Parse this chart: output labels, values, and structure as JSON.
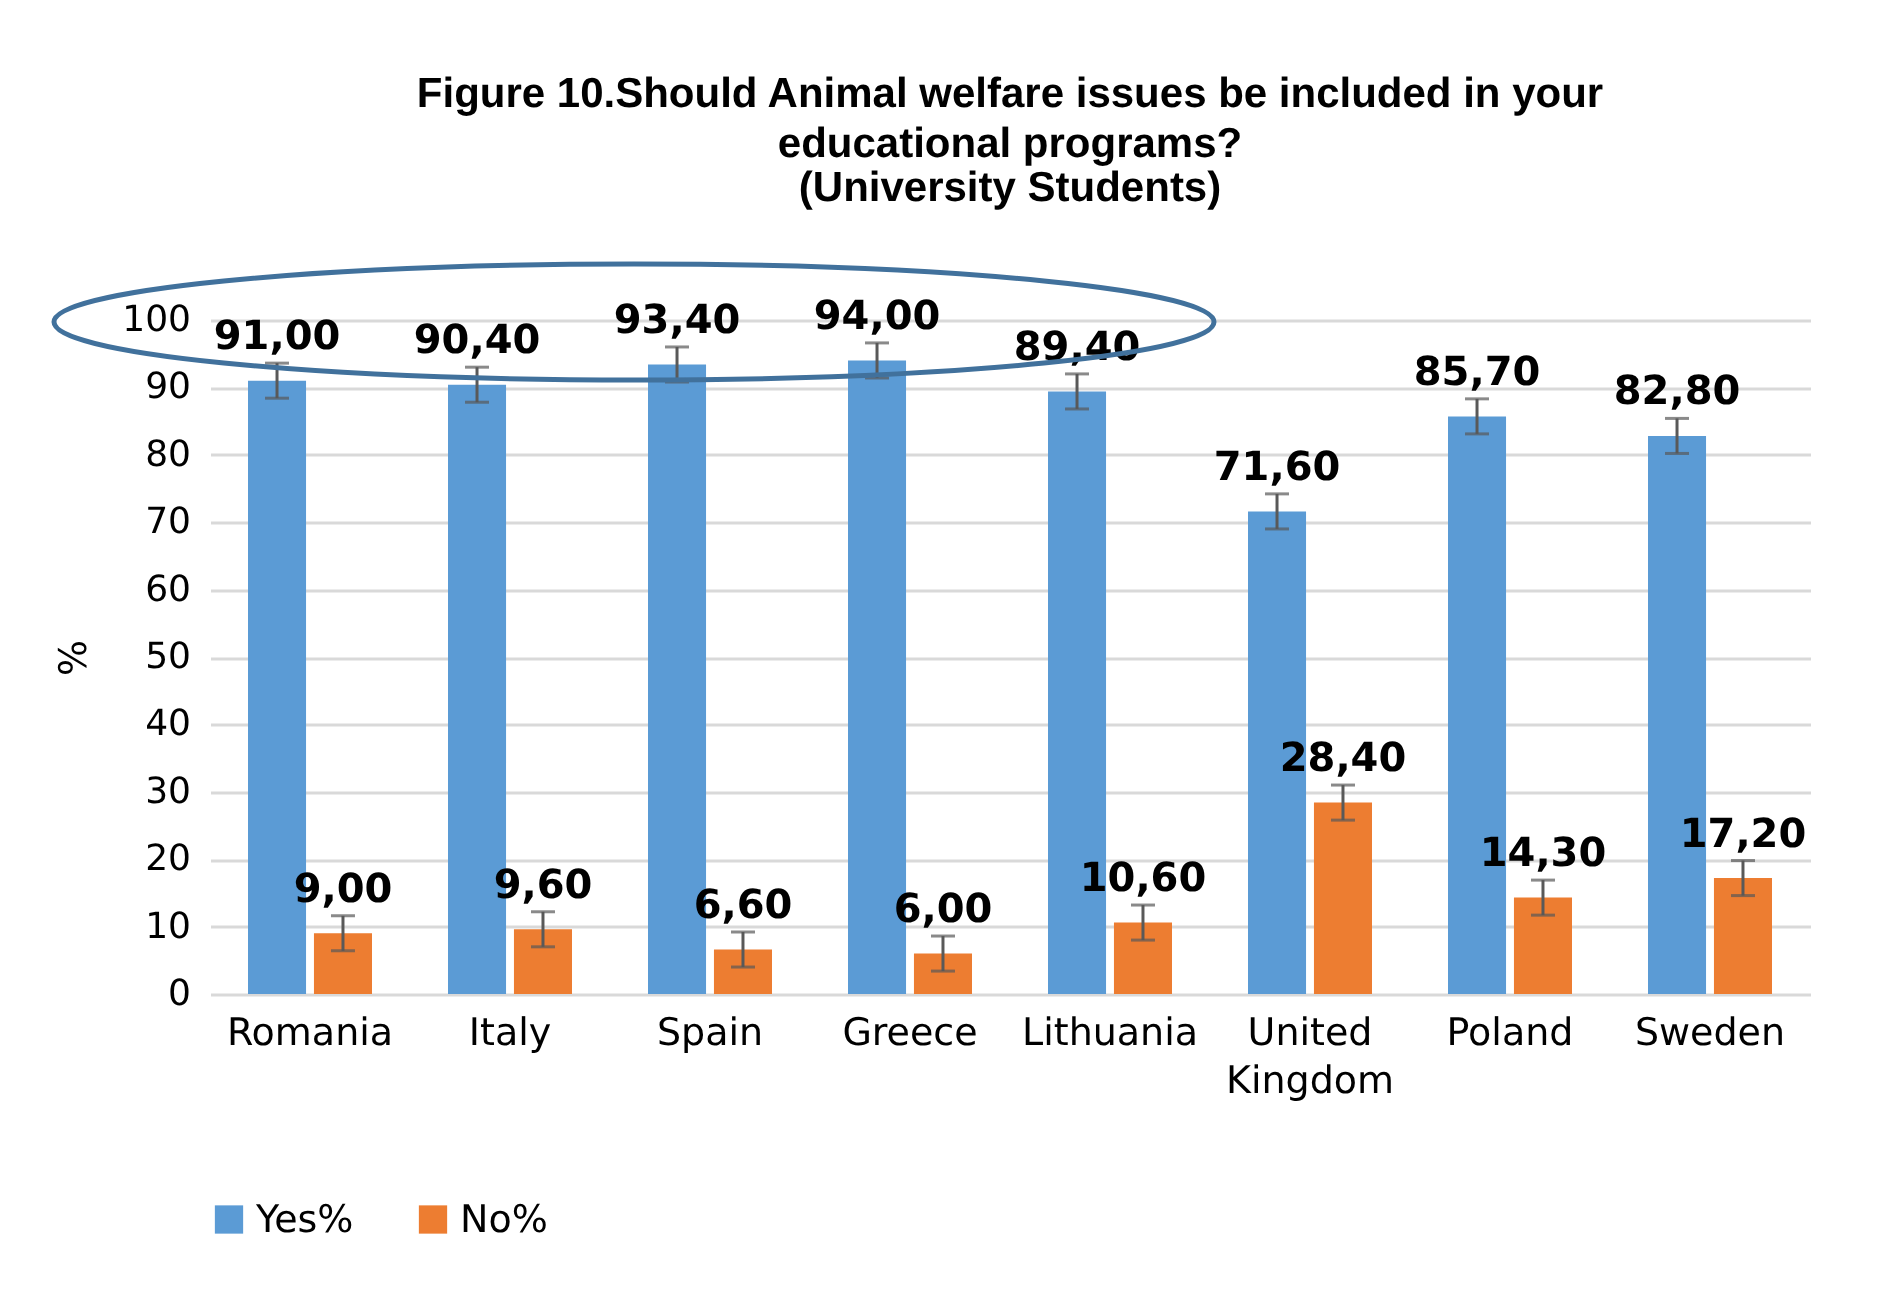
{
  "chart_data": {
    "type": "bar",
    "title": "Figure 10.Should Animal welfare issues be included in your educational programs?",
    "subtitle": "(University Students)",
    "ylabel": "%",
    "categories": [
      "Romania",
      "Italy",
      "Spain",
      "Greece",
      "Lithuania",
      "United Kingdom",
      "Poland",
      "Sweden"
    ],
    "series": [
      {
        "name": "Yes%",
        "color": "#5b9bd5",
        "values": [
          91.0,
          90.4,
          93.4,
          94.0,
          89.4,
          71.6,
          85.7,
          82.8
        ],
        "errors": [
          2.6,
          2.6,
          2.6,
          2.6,
          2.6,
          2.6,
          2.6,
          2.6
        ],
        "value_labels": [
          "91,00",
          "90,40",
          "93,40",
          "94,00",
          "89,40",
          "71,60",
          "85,70",
          "82,80"
        ]
      },
      {
        "name": "No%",
        "color": "#ed7d31",
        "values": [
          9.0,
          9.6,
          6.6,
          6.0,
          10.6,
          28.4,
          14.3,
          17.2
        ],
        "errors": [
          2.6,
          2.6,
          2.6,
          2.6,
          2.6,
          2.6,
          2.6,
          2.6
        ],
        "value_labels": [
          "9,00",
          "9,60",
          "6,60",
          "6,00",
          "10,60",
          "28,40",
          "14,30",
          "17,20"
        ]
      }
    ],
    "ylim": [
      0,
      100
    ],
    "yticks": [
      0,
      10,
      20,
      30,
      40,
      50,
      60,
      70,
      80,
      90,
      100
    ],
    "grid": "y",
    "legend": "bottom"
  }
}
